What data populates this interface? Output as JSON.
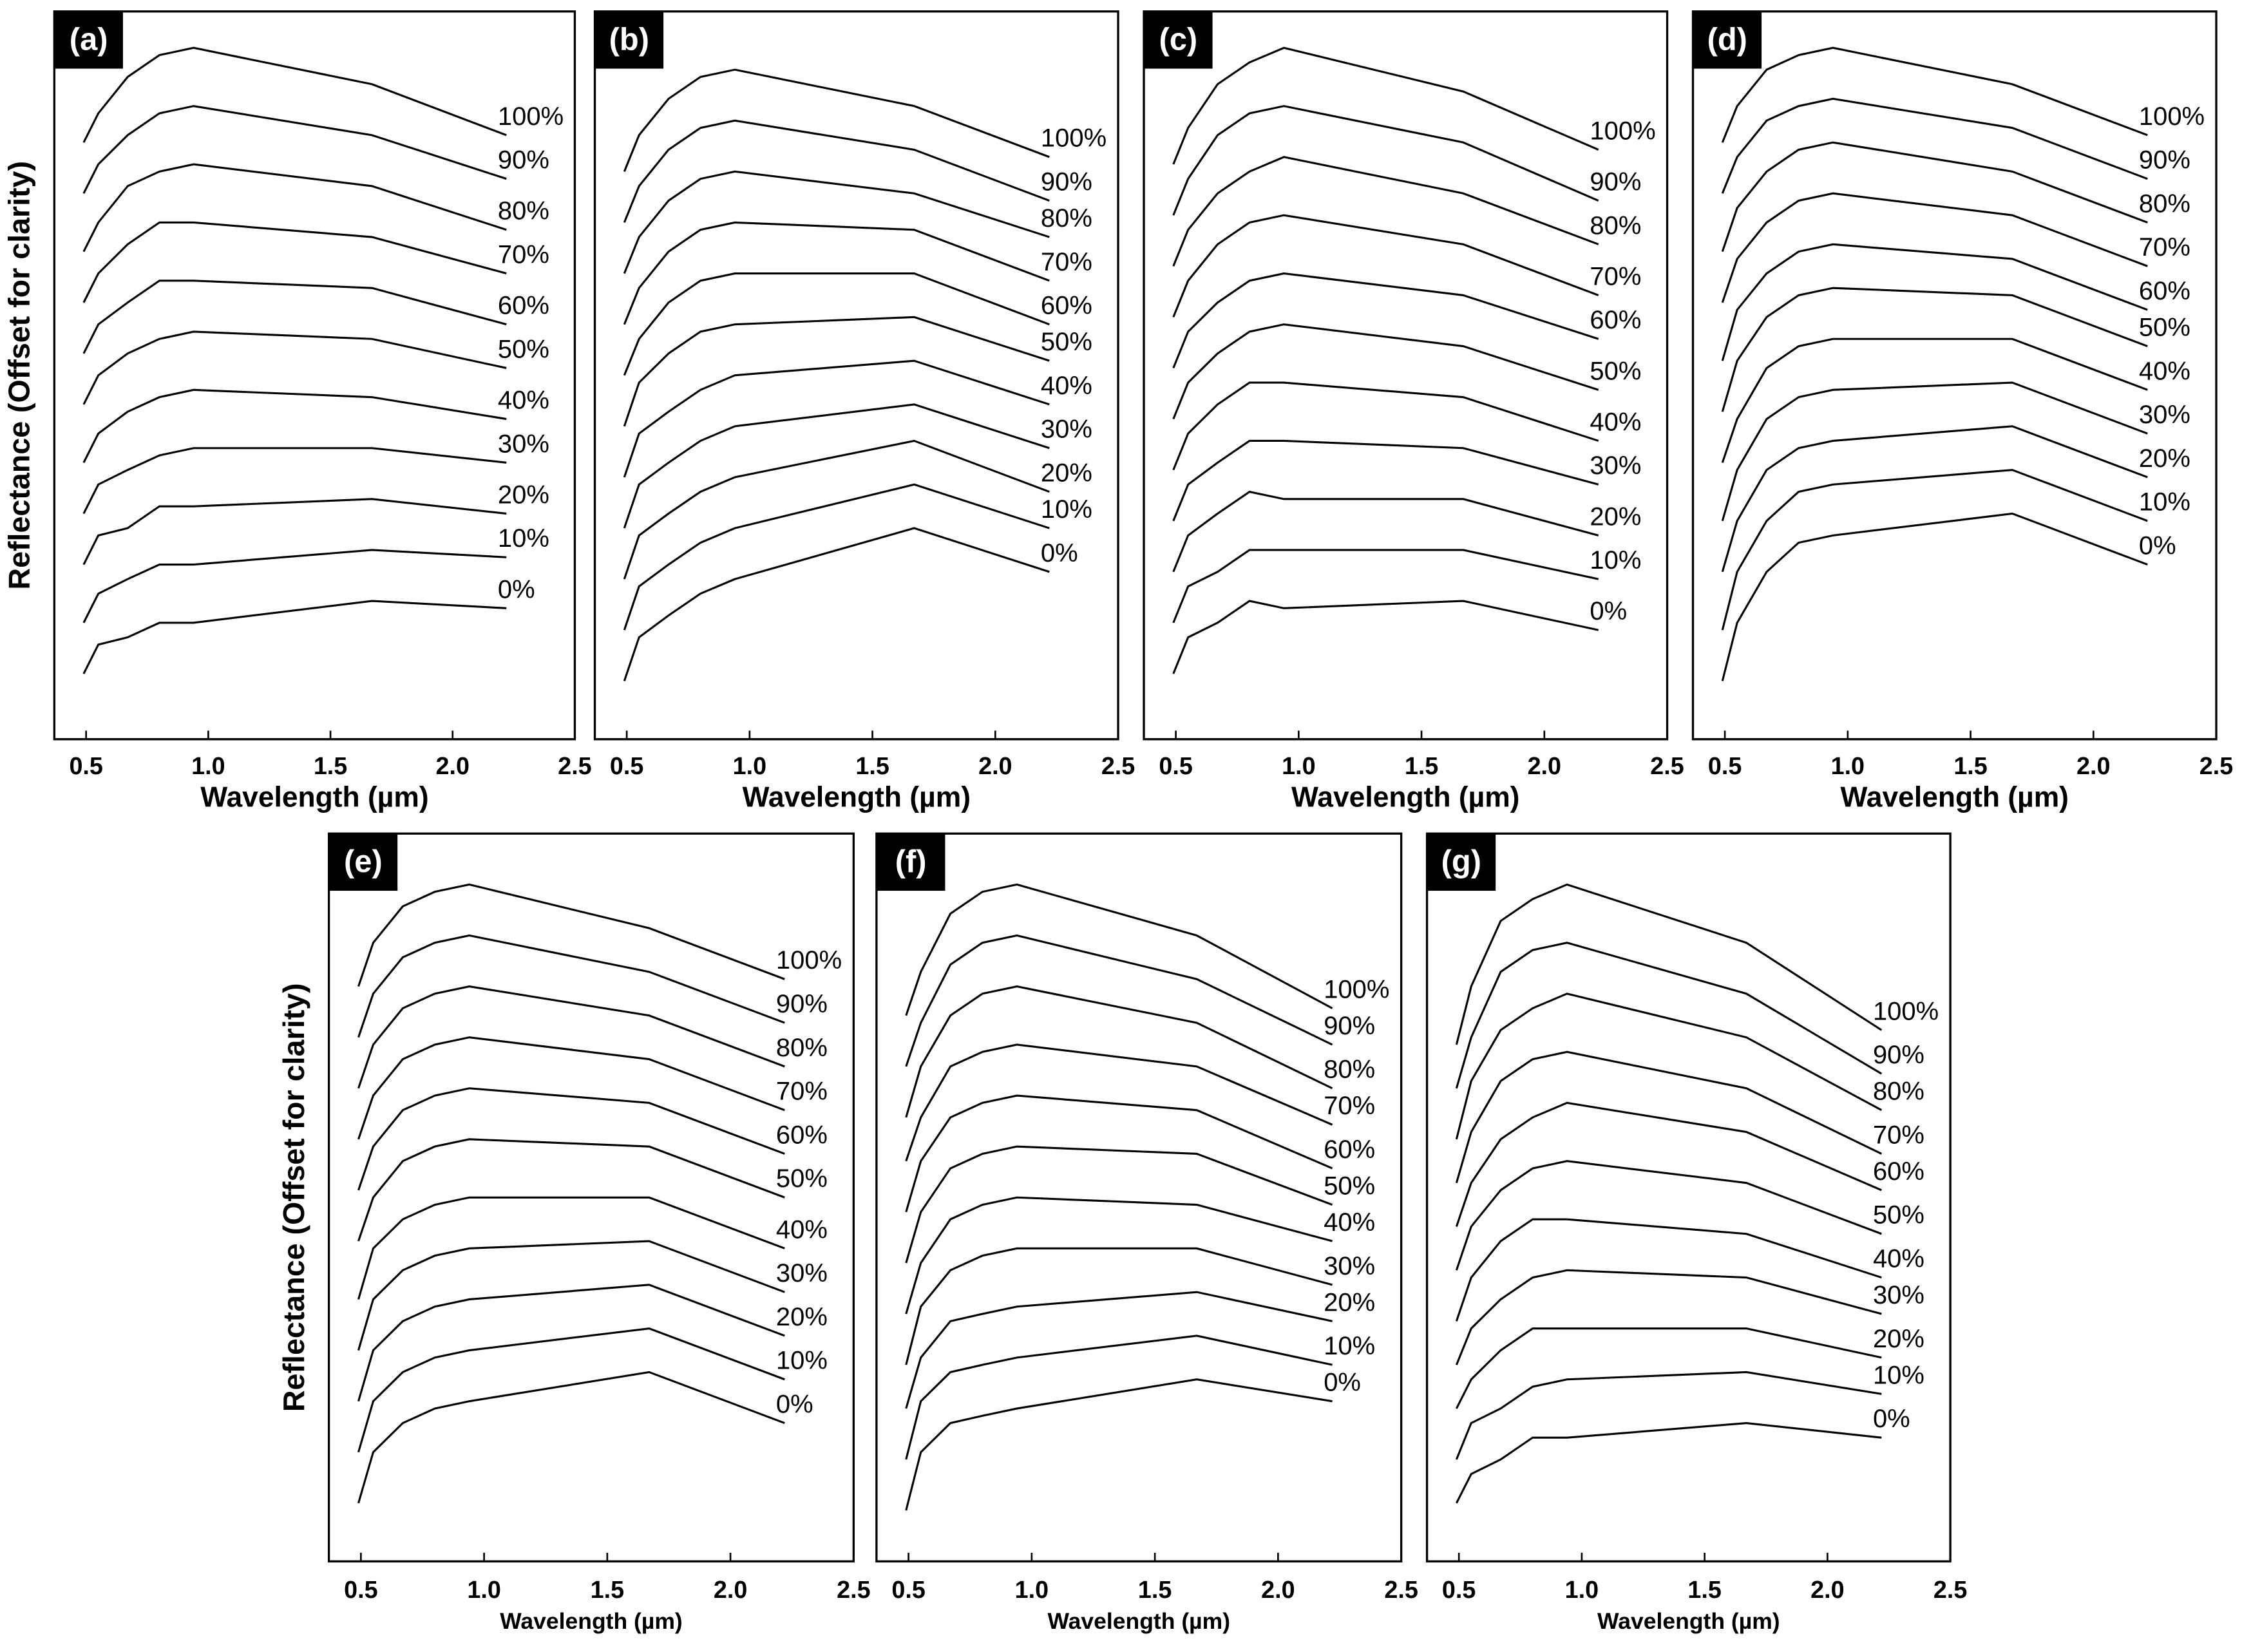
{
  "chart_data": [
    {
      "type": "line",
      "panel_label": "(a)",
      "x_label": "Wavelength (µm)",
      "y_label": "Reflectance (Offset for clarity)",
      "color": "#000000",
      "x": [
        0.49,
        0.55,
        0.67,
        0.8,
        0.94,
        1.67,
        2.22
      ],
      "xlim": [
        0.37,
        2.5
      ],
      "ylim": [
        0,
        100
      ],
      "xticks": [
        0.5,
        {
          "value": 1,
          "label": "1.0"
        },
        1.5,
        {
          "value": 2,
          "label": "2.0"
        },
        2.5
      ],
      "series": [
        {
          "name": "0%",
          "values": [
            9,
            13,
            14,
            16,
            16,
            19,
            18
          ]
        },
        {
          "name": "10%",
          "values": [
            16,
            20,
            22,
            24,
            24,
            26,
            25
          ]
        },
        {
          "name": "20%",
          "values": [
            24,
            28,
            29,
            32,
            32,
            33,
            31
          ]
        },
        {
          "name": "30%",
          "values": [
            31,
            35,
            37,
            39,
            40,
            40,
            38
          ]
        },
        {
          "name": "40%",
          "values": [
            38,
            42,
            45,
            47,
            48,
            47,
            44
          ]
        },
        {
          "name": "50%",
          "values": [
            46,
            50,
            53,
            55,
            56,
            55,
            51
          ]
        },
        {
          "name": "60%",
          "values": [
            53,
            57,
            60,
            63,
            63,
            62,
            57
          ]
        },
        {
          "name": "70%",
          "values": [
            60,
            64,
            68,
            71,
            71,
            69,
            64
          ]
        },
        {
          "name": "80%",
          "values": [
            67,
            71,
            76,
            78,
            79,
            76,
            70
          ]
        },
        {
          "name": "90%",
          "values": [
            75,
            79,
            83,
            86,
            87,
            83,
            77
          ]
        },
        {
          "name": "100%",
          "values": [
            82,
            86,
            91,
            94,
            95,
            90,
            83
          ]
        }
      ]
    },
    {
      "type": "line",
      "panel_label": "(b)",
      "x_label": "Wavelength (µm)",
      "color": "#000000",
      "x": [
        0.49,
        0.55,
        0.67,
        0.8,
        0.94,
        1.67,
        2.22
      ],
      "xlim": [
        0.37,
        2.5
      ],
      "ylim": [
        0,
        100
      ],
      "xticks": [
        0.5,
        {
          "value": 1,
          "label": "1.0"
        },
        1.5,
        {
          "value": 2,
          "label": "2.0"
        },
        2.5
      ],
      "series": [
        {
          "name": "0%",
          "values": [
            8,
            14,
            17,
            20,
            22,
            29,
            23
          ]
        },
        {
          "name": "10%",
          "values": [
            15,
            21,
            24,
            27,
            29,
            35,
            29
          ]
        },
        {
          "name": "20%",
          "values": [
            22,
            28,
            31,
            34,
            36,
            41,
            34
          ]
        },
        {
          "name": "30%",
          "values": [
            29,
            35,
            38,
            41,
            43,
            46,
            40
          ]
        },
        {
          "name": "40%",
          "values": [
            36,
            42,
            45,
            48,
            50,
            52,
            46
          ]
        },
        {
          "name": "50%",
          "values": [
            43,
            49,
            53,
            56,
            57,
            58,
            52
          ]
        },
        {
          "name": "60%",
          "values": [
            50,
            55,
            60,
            63,
            64,
            64,
            57
          ]
        },
        {
          "name": "70%",
          "values": [
            57,
            62,
            67,
            70,
            71,
            70,
            63
          ]
        },
        {
          "name": "80%",
          "values": [
            64,
            69,
            74,
            77,
            78,
            75,
            69
          ]
        },
        {
          "name": "90%",
          "values": [
            71,
            76,
            81,
            84,
            85,
            81,
            74
          ]
        },
        {
          "name": "100%",
          "values": [
            78,
            83,
            88,
            91,
            92,
            87,
            80
          ]
        }
      ]
    },
    {
      "type": "line",
      "panel_label": "(c)",
      "x_label": "Wavelength (µm)",
      "color": "#000000",
      "x": [
        0.49,
        0.55,
        0.67,
        0.8,
        0.94,
        1.67,
        2.22
      ],
      "xlim": [
        0.37,
        2.5
      ],
      "ylim": [
        0,
        100
      ],
      "xticks": [
        0.5,
        {
          "value": 1,
          "label": "1.0"
        },
        1.5,
        {
          "value": 2,
          "label": "2.0"
        },
        2.5
      ],
      "series": [
        {
          "name": "0%",
          "values": [
            9,
            14,
            16,
            19,
            18,
            19,
            15
          ]
        },
        {
          "name": "10%",
          "values": [
            16,
            21,
            23,
            26,
            26,
            26,
            22
          ]
        },
        {
          "name": "20%",
          "values": [
            23,
            28,
            31,
            34,
            33,
            33,
            28
          ]
        },
        {
          "name": "30%",
          "values": [
            30,
            35,
            38,
            41,
            41,
            40,
            35
          ]
        },
        {
          "name": "40%",
          "values": [
            37,
            42,
            46,
            49,
            49,
            47,
            41
          ]
        },
        {
          "name": "50%",
          "values": [
            44,
            49,
            53,
            56,
            57,
            54,
            48
          ]
        },
        {
          "name": "60%",
          "values": [
            51,
            56,
            60,
            63,
            64,
            61,
            55
          ]
        },
        {
          "name": "70%",
          "values": [
            58,
            63,
            68,
            71,
            72,
            68,
            61
          ]
        },
        {
          "name": "80%",
          "values": [
            65,
            70,
            75,
            78,
            80,
            75,
            68
          ]
        },
        {
          "name": "90%",
          "values": [
            72,
            77,
            83,
            86,
            87,
            82,
            74
          ]
        },
        {
          "name": "100%",
          "values": [
            79,
            84,
            90,
            93,
            95,
            89,
            81
          ]
        }
      ]
    },
    {
      "type": "line",
      "panel_label": "(d)",
      "x_label": "Wavelength (µm)",
      "color": "#000000",
      "x": [
        0.49,
        0.55,
        0.67,
        0.8,
        0.94,
        1.67,
        2.22
      ],
      "xlim": [
        0.37,
        2.5
      ],
      "ylim": [
        0,
        100
      ],
      "xticks": [
        0.5,
        {
          "value": 1,
          "label": "1.0"
        },
        1.5,
        {
          "value": 2,
          "label": "2.0"
        },
        2.5
      ],
      "series": [
        {
          "name": "0%",
          "values": [
            8,
            16,
            23,
            27,
            28,
            31,
            24
          ]
        },
        {
          "name": "10%",
          "values": [
            15,
            23,
            30,
            34,
            35,
            37,
            30
          ]
        },
        {
          "name": "20%",
          "values": [
            23,
            30,
            37,
            40,
            41,
            43,
            36
          ]
        },
        {
          "name": "30%",
          "values": [
            30,
            37,
            44,
            47,
            48,
            49,
            42
          ]
        },
        {
          "name": "40%",
          "values": [
            38,
            44,
            51,
            54,
            55,
            55,
            48
          ]
        },
        {
          "name": "50%",
          "values": [
            45,
            52,
            58,
            61,
            62,
            61,
            54
          ]
        },
        {
          "name": "60%",
          "values": [
            52,
            59,
            64,
            67,
            68,
            66,
            59
          ]
        },
        {
          "name": "70%",
          "values": [
            60,
            66,
            71,
            74,
            75,
            72,
            65
          ]
        },
        {
          "name": "80%",
          "values": [
            67,
            73,
            78,
            81,
            82,
            78,
            71
          ]
        },
        {
          "name": "90%",
          "values": [
            75,
            80,
            85,
            87,
            88,
            84,
            77
          ]
        },
        {
          "name": "100%",
          "values": [
            82,
            87,
            92,
            94,
            95,
            90,
            83
          ]
        }
      ]
    },
    {
      "type": "line",
      "panel_label": "(e)",
      "x_label": "Wavelength (µm)",
      "y_label": "Reflectance (Offset for clarity)",
      "color": "#000000",
      "x": [
        0.49,
        0.55,
        0.67,
        0.8,
        0.94,
        1.67,
        2.22
      ],
      "xlim": [
        0.37,
        2.5
      ],
      "ylim": [
        0,
        100
      ],
      "xticks": [
        0.5,
        {
          "value": 1,
          "label": "1.0"
        },
        1.5,
        {
          "value": 2,
          "label": "2.0"
        },
        2.5
      ],
      "series": [
        {
          "name": "0%",
          "values": [
            8,
            15,
            19,
            21,
            22,
            26,
            19
          ]
        },
        {
          "name": "10%",
          "values": [
            15,
            22,
            26,
            28,
            29,
            32,
            25
          ]
        },
        {
          "name": "20%",
          "values": [
            22,
            29,
            33,
            35,
            36,
            38,
            31
          ]
        },
        {
          "name": "30%",
          "values": [
            29,
            36,
            40,
            42,
            43,
            44,
            37
          ]
        },
        {
          "name": "40%",
          "values": [
            36,
            43,
            47,
            49,
            50,
            50,
            43
          ]
        },
        {
          "name": "50%",
          "values": [
            44,
            50,
            55,
            57,
            58,
            57,
            50
          ]
        },
        {
          "name": "60%",
          "values": [
            51,
            57,
            62,
            64,
            65,
            63,
            56
          ]
        },
        {
          "name": "70%",
          "values": [
            58,
            64,
            69,
            71,
            72,
            69,
            62
          ]
        },
        {
          "name": "80%",
          "values": [
            65,
            71,
            76,
            78,
            79,
            75,
            68
          ]
        },
        {
          "name": "90%",
          "values": [
            72,
            78,
            83,
            85,
            86,
            81,
            74
          ]
        },
        {
          "name": "100%",
          "values": [
            79,
            85,
            90,
            92,
            93,
            87,
            80
          ]
        }
      ]
    },
    {
      "type": "line",
      "panel_label": "(f)",
      "x_label": "Wavelength (µm)",
      "color": "#000000",
      "x": [
        0.49,
        0.55,
        0.67,
        0.8,
        0.94,
        1.67,
        2.22
      ],
      "xlim": [
        0.37,
        2.5
      ],
      "ylim": [
        0,
        100
      ],
      "xticks": [
        0.5,
        {
          "value": 1,
          "label": "1.0"
        },
        1.5,
        {
          "value": 2,
          "label": "2.0"
        },
        2.5
      ],
      "series": [
        {
          "name": "0%",
          "values": [
            7,
            15,
            19,
            20,
            21,
            25,
            22
          ]
        },
        {
          "name": "10%",
          "values": [
            14,
            22,
            26,
            27,
            28,
            31,
            27
          ]
        },
        {
          "name": "20%",
          "values": [
            21,
            28,
            33,
            34,
            35,
            37,
            33
          ]
        },
        {
          "name": "30%",
          "values": [
            27,
            35,
            40,
            42,
            43,
            43,
            38
          ]
        },
        {
          "name": "40%",
          "values": [
            34,
            41,
            47,
            49,
            50,
            49,
            44
          ]
        },
        {
          "name": "50%",
          "values": [
            41,
            48,
            54,
            56,
            57,
            56,
            49
          ]
        },
        {
          "name": "60%",
          "values": [
            48,
            55,
            61,
            63,
            64,
            62,
            54
          ]
        },
        {
          "name": "70%",
          "values": [
            55,
            61,
            68,
            70,
            71,
            68,
            60
          ]
        },
        {
          "name": "80%",
          "values": [
            61,
            68,
            75,
            78,
            79,
            74,
            65
          ]
        },
        {
          "name": "90%",
          "values": [
            68,
            74,
            82,
            85,
            86,
            80,
            71
          ]
        },
        {
          "name": "100%",
          "values": [
            75,
            81,
            89,
            92,
            93,
            86,
            76
          ]
        }
      ]
    },
    {
      "type": "line",
      "panel_label": "(g)",
      "x_label": "Wavelength (µm)",
      "color": "#000000",
      "x": [
        0.49,
        0.55,
        0.67,
        0.8,
        0.94,
        1.67,
        2.22
      ],
      "xlim": [
        0.37,
        2.5
      ],
      "ylim": [
        0,
        100
      ],
      "xticks": [
        0.5,
        {
          "value": 1,
          "label": "1.0"
        },
        1.5,
        {
          "value": 2,
          "label": "2.0"
        },
        2.5
      ],
      "series": [
        {
          "name": "0%",
          "values": [
            8,
            12,
            14,
            17,
            17,
            19,
            17
          ]
        },
        {
          "name": "10%",
          "values": [
            14,
            19,
            21,
            24,
            25,
            26,
            23
          ]
        },
        {
          "name": "20%",
          "values": [
            21,
            25,
            29,
            32,
            32,
            32,
            28
          ]
        },
        {
          "name": "30%",
          "values": [
            27,
            32,
            36,
            39,
            40,
            39,
            34
          ]
        },
        {
          "name": "40%",
          "values": [
            33,
            39,
            44,
            47,
            47,
            45,
            39
          ]
        },
        {
          "name": "50%",
          "values": [
            40,
            46,
            51,
            54,
            55,
            52,
            45
          ]
        },
        {
          "name": "60%",
          "values": [
            46,
            52,
            58,
            61,
            63,
            59,
            51
          ]
        },
        {
          "name": "70%",
          "values": [
            52,
            59,
            66,
            69,
            70,
            65,
            56
          ]
        },
        {
          "name": "80%",
          "values": [
            58,
            66,
            73,
            76,
            78,
            72,
            62
          ]
        },
        {
          "name": "90%",
          "values": [
            65,
            72,
            81,
            84,
            85,
            78,
            67
          ]
        },
        {
          "name": "100%",
          "values": [
            71,
            79,
            88,
            91,
            93,
            85,
            73
          ]
        }
      ]
    }
  ]
}
